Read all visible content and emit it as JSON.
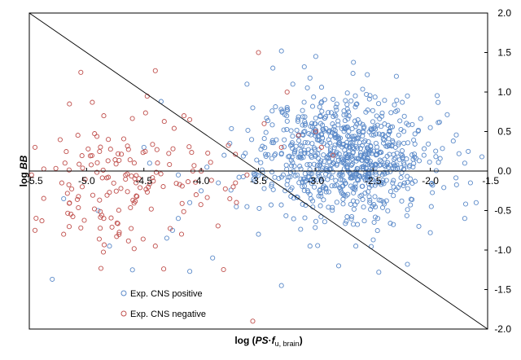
{
  "chart_data": {
    "type": "scatter",
    "title": "",
    "xlabel_prefix": "log (",
    "xlabel_italic": "PS",
    "xlabel_dot": "·",
    "xlabel_f": "f",
    "xlabel_sub": "u, brain",
    "xlabel_suffix": ")",
    "ylabel_prefix": "log ",
    "ylabel_italic": "BB",
    "xlim": [
      -5.5,
      -1.5
    ],
    "ylim": [
      -2.0,
      2.0
    ],
    "xticks": [
      -5.5,
      -5.0,
      -4.5,
      -4.0,
      -3.5,
      -3.0,
      -2.5,
      -2.0,
      -1.5
    ],
    "yticks": [
      -2.0,
      -1.5,
      -1.0,
      -0.5,
      0.0,
      0.5,
      1.0,
      1.5,
      2.0
    ],
    "xtick_labels": [
      "-5.5",
      "-5.0",
      "-4.5",
      "-4.0",
      "-3.5",
      "-3.0",
      "-2.5",
      "-2.0",
      "-1.5"
    ],
    "ytick_labels": [
      "-2.0",
      "-1.5",
      "-1.0",
      "-0.5",
      "0.0",
      "0.5",
      "1.0",
      "1.5",
      "2.0"
    ],
    "grid": false,
    "legend_position": "bottom-left",
    "reference_line": {
      "from": [
        -5.5,
        2.0
      ],
      "to": [
        -1.5,
        -2.0
      ]
    },
    "series": [
      {
        "name": "Exp. CNS positive",
        "color": "#5b8ac9",
        "cloud": {
          "center_x": -2.75,
          "center_y": 0.2,
          "sd_x": 0.35,
          "sd_y": 0.38,
          "count": 820,
          "seed": 11
        },
        "points": [
          [
            -3.6,
            1.1
          ],
          [
            -4.35,
            0.88
          ],
          [
            -4.5,
            0.3
          ],
          [
            -4.2,
            -0.05
          ],
          [
            -4.0,
            -0.25
          ],
          [
            -3.85,
            -0.15
          ],
          [
            -4.1,
            -0.4
          ],
          [
            -4.2,
            -0.6
          ],
          [
            -4.25,
            -0.75
          ],
          [
            -4.3,
            -0.85
          ],
          [
            -4.6,
            -1.25
          ],
          [
            -3.9,
            -1.1
          ],
          [
            -4.1,
            -1.27
          ],
          [
            -5.3,
            -1.37
          ],
          [
            -4.9,
            -0.5
          ],
          [
            -5.2,
            -0.35
          ],
          [
            -4.8,
            -0.95
          ],
          [
            -3.3,
            -1.45
          ],
          [
            -3.05,
            -0.95
          ],
          [
            -2.65,
            -0.95
          ],
          [
            -2.8,
            -1.2
          ],
          [
            -2.45,
            -1.28
          ],
          [
            -2.2,
            -1.18
          ],
          [
            -2.1,
            -0.7
          ],
          [
            -2.0,
            -0.78
          ],
          [
            -1.7,
            -0.6
          ],
          [
            -1.6,
            -0.4
          ],
          [
            -1.65,
            -0.15
          ],
          [
            -1.7,
            0.1
          ],
          [
            -1.55,
            0.18
          ],
          [
            -1.75,
            0.22
          ],
          [
            -1.8,
            0.38
          ],
          [
            -2.0,
            0.55
          ],
          [
            -2.2,
            0.95
          ],
          [
            -3.3,
            1.52
          ],
          [
            -3.0,
            1.45
          ],
          [
            -3.2,
            1.1
          ],
          [
            -3.55,
            0.8
          ],
          [
            -3.75,
            0.35
          ],
          [
            -3.8,
            0.2
          ],
          [
            -3.6,
            -0.45
          ],
          [
            -3.5,
            -0.8
          ],
          [
            -4.45,
            0.1
          ],
          [
            -3.95,
            0.05
          ],
          [
            -3.1,
            1.32
          ],
          [
            -2.55,
            1.22
          ]
        ]
      },
      {
        "name": "Exp. CNS negative",
        "color": "#c0504d",
        "cloud": {
          "center_x": -4.75,
          "center_y": -0.15,
          "sd_x": 0.4,
          "sd_y": 0.42,
          "count": 150,
          "seed": 29,
          "min_x": -5.45,
          "max_x": -3.5
        },
        "points": [
          [
            -5.45,
            0.3
          ],
          [
            -5.48,
            -0.05
          ],
          [
            -5.45,
            -0.75
          ],
          [
            -5.05,
            1.25
          ],
          [
            -4.95,
            0.87
          ],
          [
            -4.4,
            1.27
          ],
          [
            -3.5,
            1.5
          ],
          [
            -4.1,
            0.65
          ],
          [
            -4.15,
            0.7
          ],
          [
            -5.15,
            0.85
          ],
          [
            -4.85,
            0.7
          ],
          [
            -3.25,
            1.0
          ],
          [
            -3.45,
            0.6
          ],
          [
            -3.3,
            0.3
          ],
          [
            -3.0,
            0.5
          ],
          [
            -2.95,
            0.3
          ],
          [
            -2.85,
            0.2
          ],
          [
            -3.15,
            0.45
          ],
          [
            -3.7,
            -0.15
          ],
          [
            -3.6,
            -0.05
          ],
          [
            -3.75,
            -0.35
          ],
          [
            -3.72,
            -0.2
          ],
          [
            -3.55,
            -1.9
          ],
          [
            -4.4,
            -0.95
          ],
          [
            -5.05,
            -0.72
          ],
          [
            -5.2,
            -0.8
          ],
          [
            -4.85,
            -0.6
          ]
        ]
      }
    ]
  }
}
